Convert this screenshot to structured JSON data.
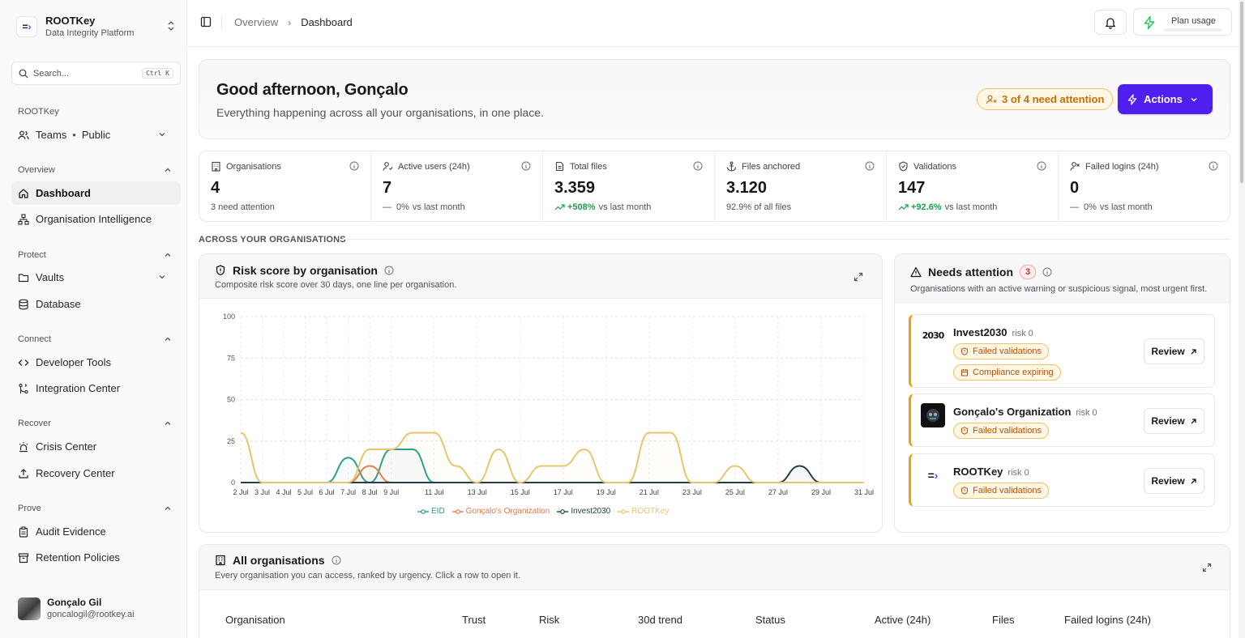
{
  "brand": {
    "name": "ROOTKey",
    "subtitle": "Data Integrity Platform",
    "logo_text": "⇒"
  },
  "search": {
    "placeholder": "Search...",
    "shortcut": "Ctrl K"
  },
  "sidebar": {
    "workspace_label": "ROOTKey",
    "teams": {
      "label": "Teams",
      "visibility": "Public"
    },
    "sections": [
      {
        "label": "Overview",
        "items": [
          {
            "label": "Dashboard",
            "icon": "home-icon",
            "active": true
          },
          {
            "label": "Organisation Intelligence",
            "icon": "network-icon"
          }
        ]
      },
      {
        "label": "Protect",
        "items": [
          {
            "label": "Vaults",
            "icon": "folder-icon"
          },
          {
            "label": "Database",
            "icon": "database-icon"
          }
        ]
      },
      {
        "label": "Connect",
        "items": [
          {
            "label": "Developer Tools",
            "icon": "code-icon"
          },
          {
            "label": "Integration Center",
            "icon": "git-merge-icon"
          }
        ]
      },
      {
        "label": "Recover",
        "items": [
          {
            "label": "Crisis Center",
            "icon": "siren-icon"
          },
          {
            "label": "Recovery Center",
            "icon": "upload-icon"
          }
        ]
      },
      {
        "label": "Prove",
        "items": [
          {
            "label": "Audit Evidence",
            "icon": "clipboard-icon"
          },
          {
            "label": "Retention Policies",
            "icon": "archive-icon"
          }
        ]
      }
    ],
    "user": {
      "name": "Gonçalo Gil",
      "email": "goncalogil@rootkey.ai"
    }
  },
  "topbar": {
    "breadcrumb": [
      "Overview",
      "Dashboard"
    ],
    "plan_usage_label": "Plan usage"
  },
  "greeting": {
    "title": "Good afternoon, Gonçalo",
    "subtitle": "Everything happening across all your organisations, in one place.",
    "attention_badge": "3 of 4 need attention",
    "actions_label": "Actions"
  },
  "stats": [
    {
      "label": "Organisations",
      "value": "4",
      "sub": "3 need attention",
      "trend": "none",
      "icon": "building-icon"
    },
    {
      "label": "Active users (24h)",
      "value": "7",
      "delta": "0%",
      "sub": "vs last month",
      "trend": "flat",
      "icon": "user-activity-icon"
    },
    {
      "label": "Total files",
      "value": "3.359",
      "delta": "+508%",
      "sub": "vs last month",
      "trend": "up",
      "icon": "file-icon"
    },
    {
      "label": "Files anchored",
      "value": "3.120",
      "sub": "92.9% of all files",
      "trend": "none",
      "icon": "anchor-icon"
    },
    {
      "label": "Validations",
      "value": "147",
      "delta": "+92.6%",
      "sub": "vs last month",
      "trend": "up",
      "icon": "shield-check-icon"
    },
    {
      "label": "Failed logins (24h)",
      "value": "0",
      "delta": "0%",
      "sub": "vs last month",
      "trend": "flat",
      "icon": "user-x-icon"
    }
  ],
  "section_label": "ACROSS YOUR ORGANISATIONS",
  "risk_card": {
    "title": "Risk score by organisation",
    "subtitle": "Composite risk score over 30 days, one line per organisation."
  },
  "chart_data": {
    "type": "area",
    "title": "Risk score by organisation",
    "ylim": [
      0,
      100
    ],
    "y_ticks": [
      0,
      25,
      50,
      75,
      100
    ],
    "x": [
      2,
      3,
      4,
      5,
      6,
      7,
      8,
      9,
      10,
      11,
      12,
      13,
      14,
      15,
      16,
      17,
      18,
      19,
      20,
      21,
      22,
      23,
      24,
      25,
      26,
      27,
      28,
      29,
      30,
      31
    ],
    "x_tick_labels": [
      "2 Jul",
      "3 Jul",
      "4 Jul",
      "5 Jul",
      "6 Jul",
      "7 Jul",
      "8 Jul",
      "9 Jul",
      "11 Jul",
      "13 Jul",
      "15 Jul",
      "17 Jul",
      "19 Jul",
      "21 Jul",
      "23 Jul",
      "25 Jul",
      "27 Jul",
      "29 Jul",
      "31 Jul"
    ],
    "x_tick_days": [
      2,
      3,
      4,
      5,
      6,
      7,
      8,
      9,
      11,
      13,
      15,
      17,
      19,
      21,
      23,
      25,
      27,
      29,
      31
    ],
    "grid": true,
    "legend_position": "bottom",
    "series": [
      {
        "name": "EID",
        "color": "#2a9d8f",
        "values": [
          0,
          0,
          0,
          0,
          0,
          15,
          0,
          20,
          20,
          0,
          0,
          0,
          0,
          0,
          0,
          0,
          0,
          0,
          0,
          0,
          0,
          0,
          0,
          0,
          0,
          0,
          0,
          0,
          0,
          0
        ]
      },
      {
        "name": "Gonçalo's Organization",
        "color": "#e07a4a",
        "values": [
          0,
          0,
          0,
          0,
          0,
          0,
          10,
          0,
          0,
          0,
          0,
          0,
          0,
          0,
          0,
          0,
          0,
          0,
          0,
          0,
          0,
          0,
          0,
          0,
          0,
          0,
          0,
          0,
          0,
          0
        ]
      },
      {
        "name": "Invest2030",
        "color": "#1f3b4d",
        "values": [
          0,
          0,
          0,
          0,
          0,
          0,
          0,
          0,
          0,
          0,
          0,
          0,
          0,
          0,
          0,
          0,
          0,
          0,
          0,
          0,
          0,
          0,
          0,
          0,
          0,
          0,
          10,
          0,
          0,
          0
        ]
      },
      {
        "name": "ROOTKey",
        "color": "#e9c46a",
        "values": [
          30,
          0,
          0,
          0,
          0,
          0,
          20,
          20,
          30,
          30,
          10,
          0,
          20,
          0,
          10,
          10,
          20,
          0,
          0,
          30,
          30,
          0,
          0,
          10,
          0,
          0,
          0,
          0,
          0,
          0
        ]
      }
    ]
  },
  "attention_card": {
    "title": "Needs attention",
    "count": "3",
    "subtitle": "Organisations with an active warning or suspicious signal, most urgent first.",
    "review_label": "Review",
    "items": [
      {
        "name": "Invest2030",
        "risk": "risk 0",
        "logo_text": "2030",
        "tags": [
          "Failed validations",
          "Compliance expiring"
        ]
      },
      {
        "name": "Gonçalo's Organization",
        "risk": "risk 0",
        "logo_text": "",
        "tags": [
          "Failed validations"
        ]
      },
      {
        "name": "ROOTKey",
        "risk": "risk 0",
        "logo_text": "⇒",
        "tags": [
          "Failed validations"
        ]
      }
    ]
  },
  "orgs_card": {
    "title": "All organisations",
    "subtitle": "Every organisation you can access, ranked by urgency. Click a row to open it.",
    "columns": [
      "Organisation",
      "Trust",
      "Risk",
      "30d trend",
      "Status",
      "Active (24h)",
      "Files",
      "Failed logins (24h)"
    ]
  }
}
